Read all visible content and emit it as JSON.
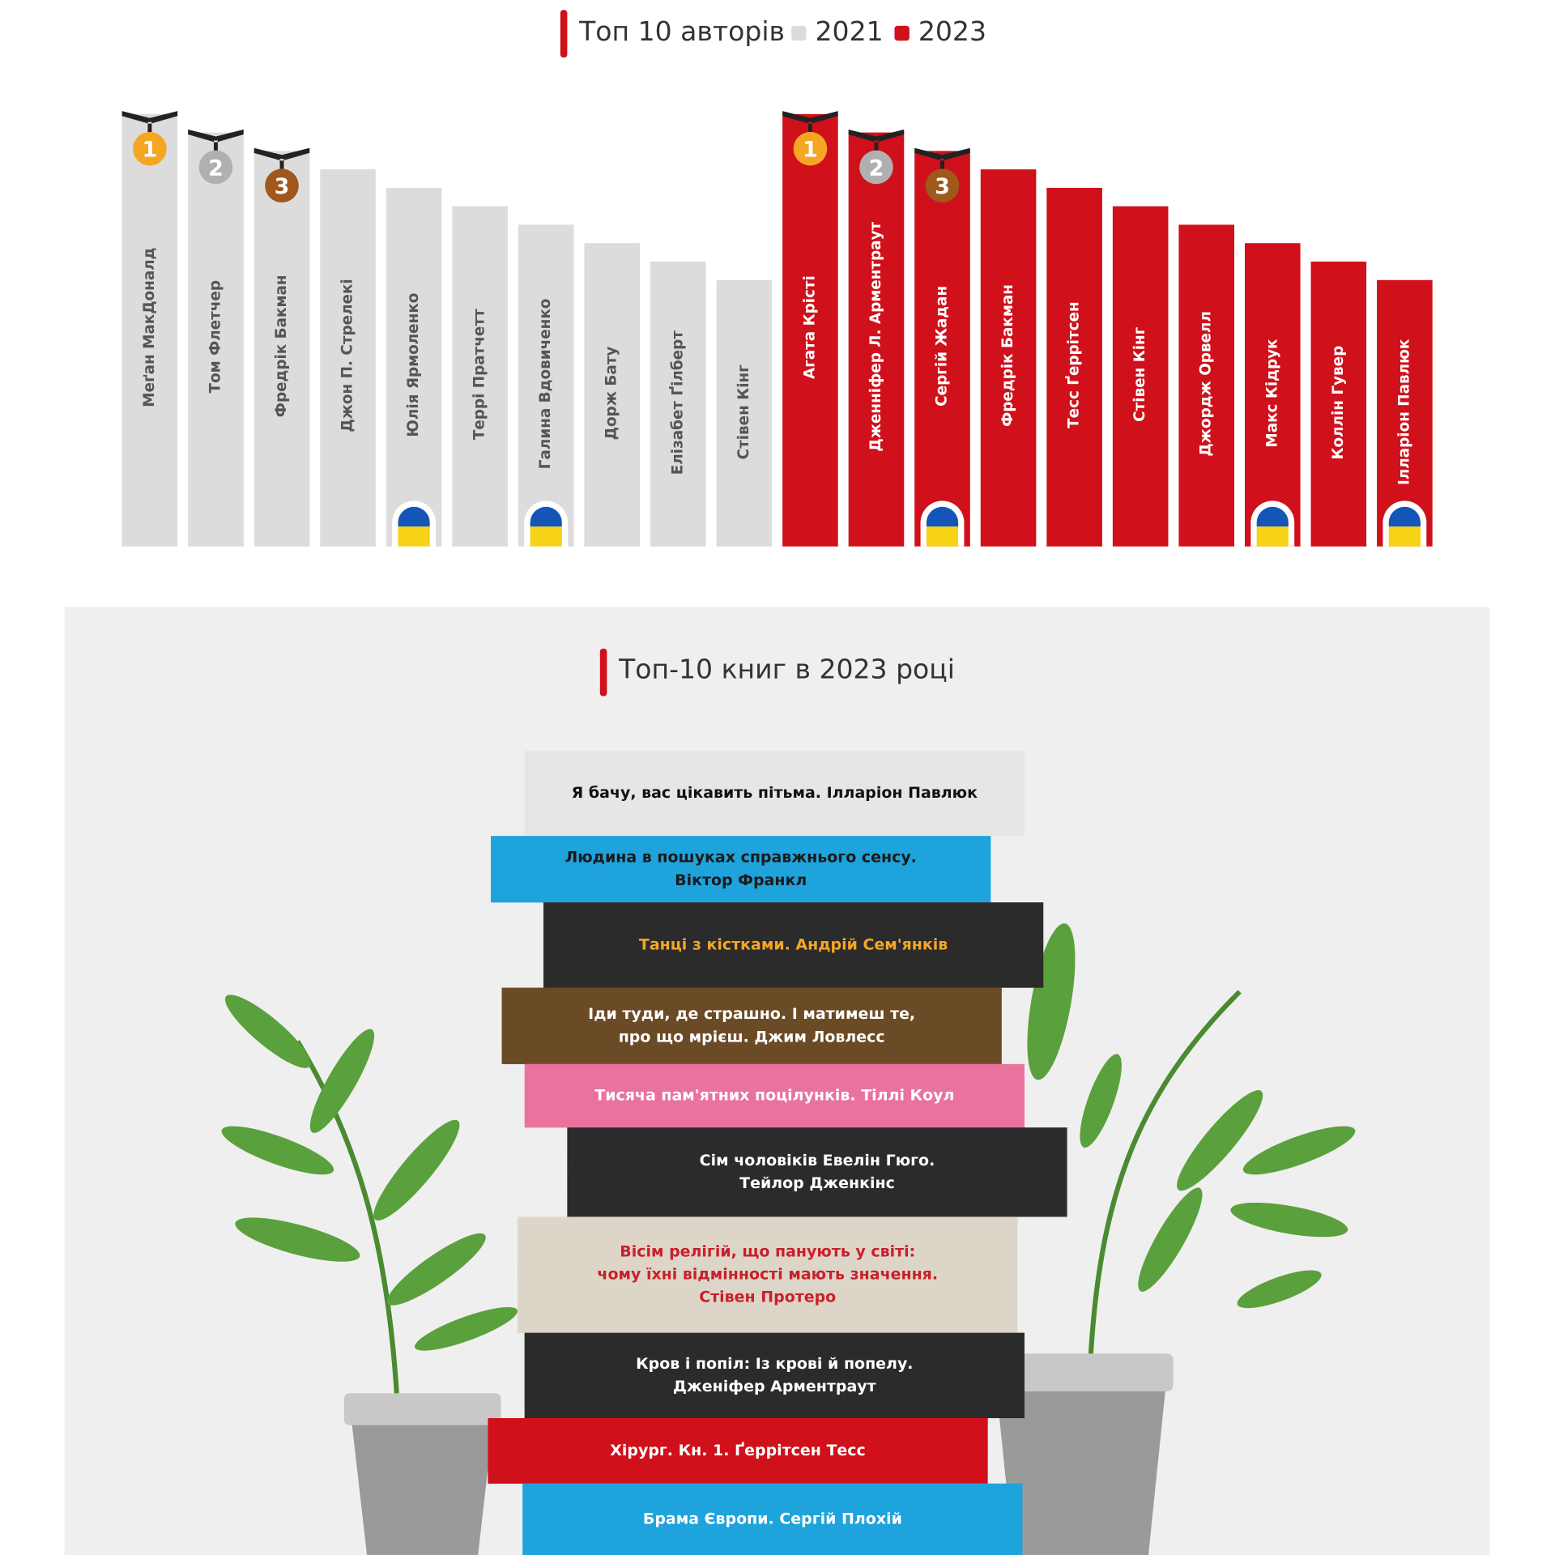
{
  "authors": {
    "title": "Топ 10 авторів",
    "medals": [
      "1",
      "2",
      "3"
    ],
    "groups": [
      {
        "legend": "2021",
        "color": "#dcdcdc",
        "text_color": "#555555",
        "names": [
          {
            "name": "Меґан МакДоналд"
          },
          {
            "name": "Том Флетчер"
          },
          {
            "name": "Фредрік Бакман"
          },
          {
            "name": "Джон П. Стрелекі"
          },
          {
            "name": "Юлія Ярмоленко",
            "ukrainian": true
          },
          {
            "name": "Террі Пратчетт"
          },
          {
            "name": "Галина Вдовиченко",
            "ukrainian": true
          },
          {
            "name": "Дорж Бату"
          },
          {
            "name": "Елізабет Ґілберт"
          },
          {
            "name": "Стівен Кінг"
          }
        ]
      },
      {
        "legend": "2023",
        "color": "#d0101a",
        "text_color": "#ffffff",
        "names": [
          {
            "name": "Агата Крісті"
          },
          {
            "name": "Дженніфер Л. Арментраут"
          },
          {
            "name": "Сергій Жадан",
            "ukrainian": true
          },
          {
            "name": "Фредрік Бакман"
          },
          {
            "name": "Тесс Ґеррітсен"
          },
          {
            "name": "Стівен Кінг"
          },
          {
            "name": "Джордж Орвелл"
          },
          {
            "name": "Макс Кідрук",
            "ukrainian": true
          },
          {
            "name": "Коллін Гувер"
          },
          {
            "name": "Ілларіон Павлюк",
            "ukrainian": true
          }
        ]
      }
    ]
  },
  "books": {
    "title": "Топ-10 книг в 2023 році",
    "items": [
      {
        "lines": [
          "Я бачу, вас цікавить пітьма. Ілларіон Павлюк"
        ],
        "bg": "#e6e6e6",
        "color": "#111111"
      },
      {
        "lines": [
          "Людина в пошуках справжнього сенсу.",
          "Віктор Франкл"
        ],
        "bg": "#1ea3dc",
        "color": "#1a1a1a"
      },
      {
        "lines": [
          "Танці з кістками. Андрій Сем'янків"
        ],
        "bg": "#2b2b2b",
        "color": "#f5a623"
      },
      {
        "lines": [
          "Іди туди, де страшно. І матимеш те,",
          "про що мрієш. Джим Ловлесс"
        ],
        "bg": "#6b4a26",
        "color": "#ffffff"
      },
      {
        "lines": [
          "Тисяча пам'ятних поцілунків. Тіллі Коул"
        ],
        "bg": "#e9729f",
        "color": "#ffffff"
      },
      {
        "lines": [
          "Сім чоловіків Евелін Гюго.",
          "Тейлор Дженкінс"
        ],
        "bg": "#2b2b2b",
        "color": "#ffffff"
      },
      {
        "lines": [
          "Вісім релігій, що панують у світі:",
          "чому їхні відмінності мають значення.",
          "Стівен Протеро"
        ],
        "bg": "#ddd5c8",
        "color": "#c8202a"
      },
      {
        "lines": [
          "Кров і попіл: Із крові й попелу.",
          "Дженіфер Арментраут"
        ],
        "bg": "#2b2b2b",
        "color": "#ffffff"
      },
      {
        "lines": [
          "Хірург. Кн. 1. Ґеррітсен Тесс"
        ],
        "bg": "#d0101a",
        "color": "#ffffff"
      },
      {
        "lines": [
          "Брама Європи. Сергій Плохій"
        ],
        "bg": "#1ea3dc",
        "color": "#ffffff"
      }
    ]
  }
}
